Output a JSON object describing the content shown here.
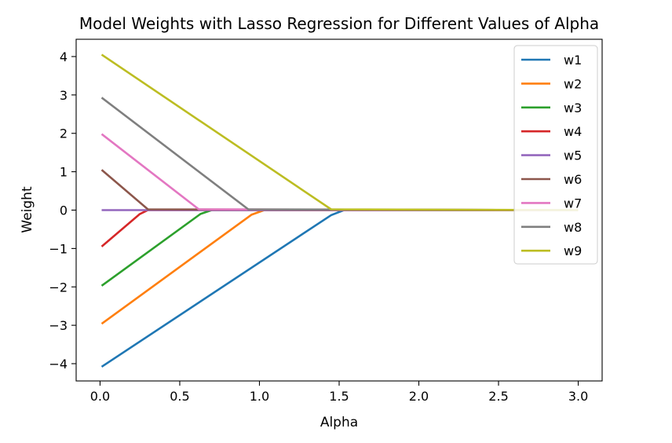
{
  "chart_data": {
    "type": "line",
    "title": "Model Weights with Lasso Regression for Different Values of Alpha",
    "xlabel": "Alpha",
    "ylabel": "Weight",
    "xlim": [
      -0.15,
      3.15
    ],
    "ylim": [
      -4.45,
      4.45
    ],
    "xticks": [
      0.0,
      0.5,
      1.0,
      1.5,
      2.0,
      2.5,
      3.0
    ],
    "xtick_labels": [
      "0.0",
      "0.5",
      "1.0",
      "1.5",
      "2.0",
      "2.5",
      "3.0"
    ],
    "yticks": [
      4,
      3,
      2,
      1,
      0,
      -1,
      -2,
      -3,
      -4
    ],
    "ytick_labels": [
      "4",
      "3",
      "2",
      "1",
      "0",
      "−1",
      "−2",
      "−3",
      "−4"
    ],
    "grid": false,
    "legend": "top-right",
    "series": [
      {
        "name": "w1",
        "color": "#1f77b4",
        "x": [
          0.01,
          1.45,
          1.53,
          3.0
        ],
        "y": [
          -4.08,
          -0.13,
          0.0,
          0.0
        ]
      },
      {
        "name": "w2",
        "color": "#ff7f0e",
        "x": [
          0.01,
          0.95,
          1.03,
          3.0
        ],
        "y": [
          -2.96,
          -0.12,
          0.0,
          0.0
        ]
      },
      {
        "name": "w3",
        "color": "#2ca02c",
        "x": [
          0.01,
          0.63,
          0.7,
          3.0
        ],
        "y": [
          -1.97,
          -0.1,
          0.0,
          0.0
        ]
      },
      {
        "name": "w4",
        "color": "#d62728",
        "x": [
          0.01,
          0.25,
          0.3,
          3.0
        ],
        "y": [
          -0.95,
          -0.1,
          0.0,
          0.0
        ]
      },
      {
        "name": "w5",
        "color": "#9467bd",
        "x": [
          0.01,
          3.0
        ],
        "y": [
          0.0,
          0.0
        ]
      },
      {
        "name": "w6",
        "color": "#8c564b",
        "x": [
          0.01,
          0.3,
          3.0
        ],
        "y": [
          1.05,
          0.02,
          0.0
        ]
      },
      {
        "name": "w7",
        "color": "#e377c2",
        "x": [
          0.01,
          0.62,
          3.0
        ],
        "y": [
          1.98,
          0.02,
          0.0
        ]
      },
      {
        "name": "w8",
        "color": "#7f7f7f",
        "x": [
          0.01,
          0.93,
          3.0
        ],
        "y": [
          2.93,
          0.02,
          0.0
        ]
      },
      {
        "name": "w9",
        "color": "#bcbd22",
        "x": [
          0.01,
          1.45,
          3.0
        ],
        "y": [
          4.05,
          0.02,
          0.0
        ]
      }
    ]
  }
}
